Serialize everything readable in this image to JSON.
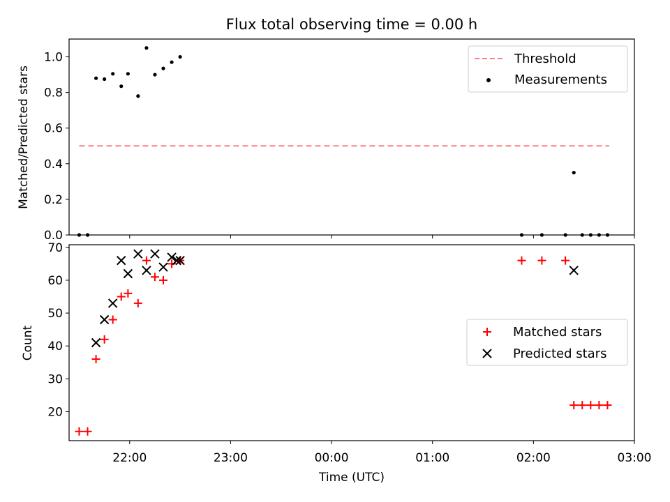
{
  "figure_title": "Flux total observing time = 0.00 h",
  "x_tick_labels": [
    "22:00",
    "23:00",
    "00:00",
    "01:00",
    "02:00",
    "03:00"
  ],
  "colors": {
    "threshold": "#ff7f7f",
    "measurements": "#000000",
    "matched": "#ff0000",
    "predicted": "#000000"
  },
  "chart_data": [
    {
      "type": "scatter",
      "ylabel": "Matched/Predicted stars",
      "xlabel": "",
      "xlim": [
        "21:24",
        "03:00"
      ],
      "ylim": [
        0,
        1.1
      ],
      "y_ticks": [
        0.0,
        0.2,
        0.4,
        0.6,
        0.8,
        1.0
      ],
      "y_tick_labels": [
        "0.0",
        "0.2",
        "0.4",
        "0.6",
        "0.8",
        "1.0"
      ],
      "legend_position": "top-right",
      "legend": [
        "Threshold",
        "Measurements"
      ],
      "series": [
        {
          "name": "Threshold",
          "style": "dashed-line",
          "x": [
            "21:30",
            "02:45"
          ],
          "y": [
            0.5,
            0.5
          ]
        },
        {
          "name": "Measurements",
          "style": "dot",
          "x": [
            "21:30",
            "21:35",
            "21:40",
            "21:45",
            "21:50",
            "21:55",
            "21:59",
            "22:05",
            "22:10",
            "22:15",
            "22:20",
            "22:25",
            "22:30",
            "01:53",
            "02:05",
            "02:19",
            "02:24",
            "02:29",
            "02:34",
            "02:39",
            "02:44"
          ],
          "y": [
            0.0,
            0.0,
            0.88,
            0.875,
            0.905,
            0.835,
            0.905,
            0.78,
            1.05,
            0.9,
            0.935,
            0.97,
            1.0,
            0.0,
            0.0,
            0.0,
            0.35,
            0.0,
            0.0,
            0.0,
            0.0
          ]
        }
      ]
    },
    {
      "type": "scatter",
      "ylabel": "Count",
      "xlabel": "Time (UTC)",
      "xlim": [
        "21:24",
        "03:00"
      ],
      "ylim": [
        11.2,
        70.8
      ],
      "y_ticks": [
        20,
        30,
        40,
        50,
        60,
        70
      ],
      "y_tick_labels": [
        "20",
        "30",
        "40",
        "50",
        "60",
        "70"
      ],
      "legend_position": "center-right",
      "legend": [
        "Matched stars",
        "Predicted stars"
      ],
      "series": [
        {
          "name": "Matched stars",
          "style": "plus",
          "x": [
            "21:30",
            "21:35",
            "21:40",
            "21:45",
            "21:50",
            "21:55",
            "21:59",
            "22:05",
            "22:10",
            "22:15",
            "22:20",
            "22:25",
            "22:30",
            "01:53",
            "02:05",
            "02:19",
            "02:24",
            "02:29",
            "02:34",
            "02:39",
            "02:44"
          ],
          "y": [
            14,
            14,
            36,
            42,
            48,
            55,
            56,
            53,
            66,
            61,
            60,
            65,
            66,
            66,
            66,
            66,
            22,
            22,
            22,
            22,
            22
          ]
        },
        {
          "name": "Predicted stars",
          "style": "x",
          "x": [
            "21:40",
            "21:45",
            "21:50",
            "21:55",
            "21:59",
            "22:05",
            "22:10",
            "22:15",
            "22:20",
            "22:25",
            "22:28",
            "22:30",
            "02:24"
          ],
          "y": [
            41,
            48,
            53,
            66,
            62,
            68,
            63,
            68,
            64,
            67,
            66,
            66,
            63
          ]
        }
      ]
    }
  ]
}
